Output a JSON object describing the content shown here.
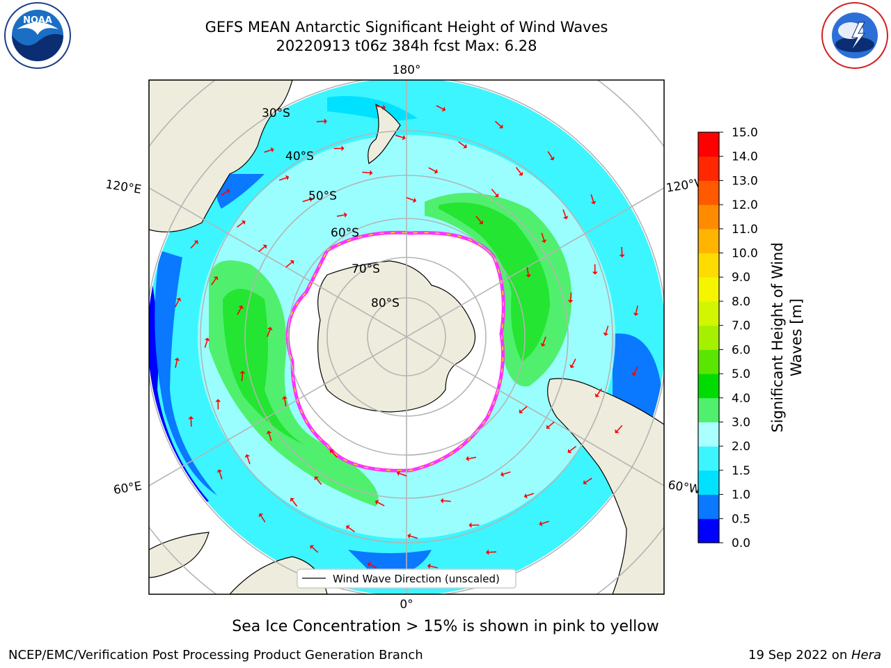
{
  "title": {
    "line1": "GEFS MEAN Antarctic Significant Height of Wind Waves",
    "line2": "20220913 t06z 384h fcst   Max: 6.28"
  },
  "map": {
    "projection": "south-polar-stereographic",
    "longitude_labels": {
      "top": "180°",
      "bottom": "0°",
      "upper_left": "120°E",
      "upper_right": "120°W",
      "lower_left": "60°E",
      "lower_right": "60°W"
    },
    "latitude_labels": [
      "30°S",
      "40°S",
      "50°S",
      "60°S",
      "70°S",
      "80°S"
    ],
    "legend_label": "Wind Wave Direction (unscaled)"
  },
  "colorbar": {
    "label_line1": "Significant Height of Wind",
    "label_line2": "Waves [m]",
    "ticks": [
      "0.0",
      "0.5",
      "1.0",
      "1.5",
      "2.0",
      "3.0",
      "4.0",
      "5.0",
      "6.0",
      "7.0",
      "8.0",
      "9.0",
      "10.0",
      "11.0",
      "12.0",
      "13.0",
      "14.0",
      "15.0"
    ],
    "colors": [
      "#0000ff",
      "#0a78ff",
      "#00e1ff",
      "#3cf5ff",
      "#aaffff",
      "#50f06e",
      "#00dc00",
      "#5ae600",
      "#a5f000",
      "#d2f500",
      "#f5f500",
      "#ffdc00",
      "#ffb400",
      "#ff8c00",
      "#ff5a00",
      "#ff2800",
      "#ff0000"
    ]
  },
  "colors": {
    "land": "#eeecdc",
    "ice": "#ffffff",
    "ice_edge": "#ff33ff",
    "arrow": "#ff0000",
    "grid": "#b4b4b4"
  },
  "caption": "Sea Ice Concentration > 15% is shown in pink to yellow",
  "footer": {
    "left": "NCEP/EMC/Verification Post Processing Product Generation Branch",
    "right_date": "19 Sep 2022 on ",
    "right_host": "Hera"
  },
  "logos": {
    "left": "noaa-logo",
    "right": "national-weather-service-logo"
  }
}
